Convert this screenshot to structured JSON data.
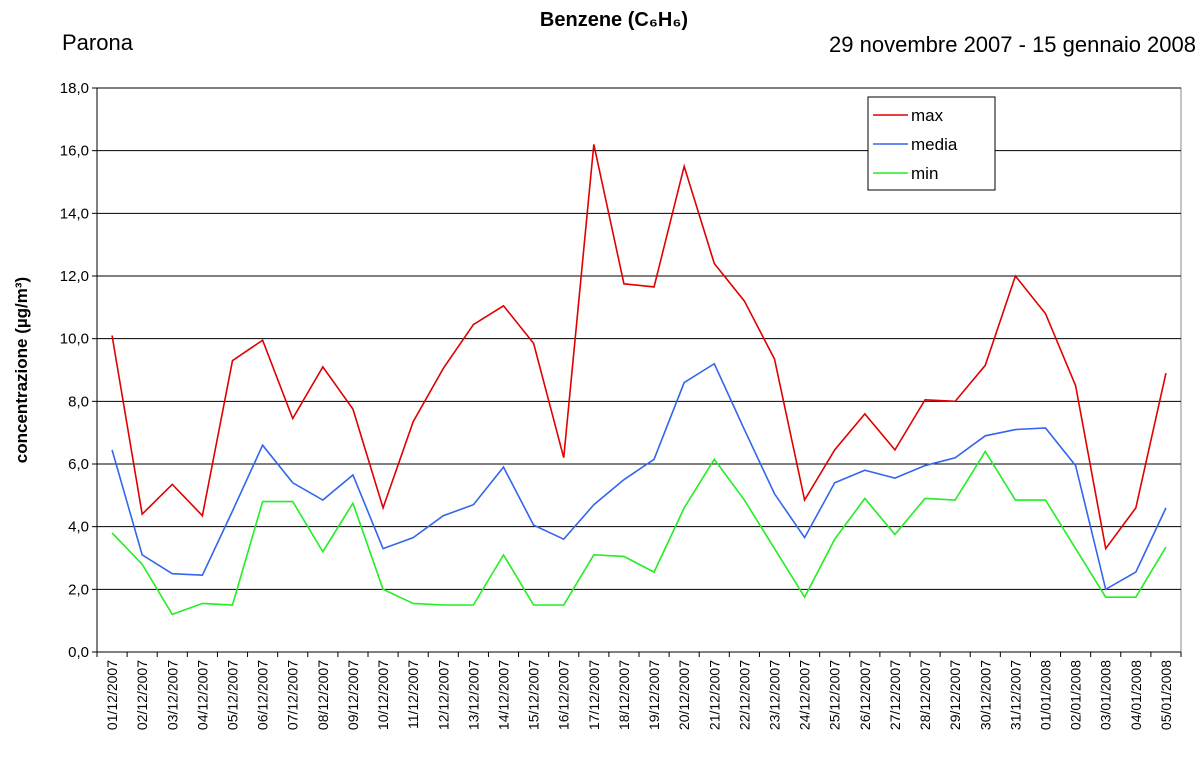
{
  "chart_data": {
    "type": "line",
    "title": "Benzene (C₆H₆)",
    "subtitle": "29 novembre 2007 - 15 gennaio 2008",
    "location": "Parona",
    "y_label": "concentrazione (µg/m³)",
    "categories": [
      "01/12/2007",
      "02/12/2007",
      "03/12/2007",
      "04/12/2007",
      "05/12/2007",
      "06/12/2007",
      "07/12/2007",
      "08/12/2007",
      "09/12/2007",
      "10/12/2007",
      "11/12/2007",
      "12/12/2007",
      "13/12/2007",
      "14/12/2007",
      "15/12/2007",
      "16/12/2007",
      "17/12/2007",
      "18/12/2007",
      "19/12/2007",
      "20/12/2007",
      "21/12/2007",
      "22/12/2007",
      "23/12/2007",
      "24/12/2007",
      "25/12/2007",
      "26/12/2007",
      "27/12/2007",
      "28/12/2007",
      "29/12/2007",
      "30/12/2007",
      "31/12/2007",
      "01/01/2008",
      "02/01/2008",
      "03/01/2008",
      "04/01/2008",
      "05/01/2008"
    ],
    "series": [
      {
        "name": "max",
        "color": "#e00000",
        "values": [
          10.1,
          4.4,
          5.35,
          4.35,
          9.3,
          9.95,
          7.45,
          9.1,
          7.75,
          4.6,
          7.35,
          9.05,
          10.45,
          11.05,
          9.85,
          6.2,
          16.2,
          11.75,
          11.65,
          15.5,
          12.4,
          11.2,
          9.35,
          4.85,
          6.45,
          7.6,
          6.45,
          8.05,
          8.0,
          9.15,
          12.0,
          10.8,
          8.5,
          3.3,
          4.6,
          8.9
        ]
      },
      {
        "name": "media",
        "color": "#3366ee",
        "values": [
          6.45,
          3.1,
          2.5,
          2.45,
          4.5,
          6.6,
          5.4,
          4.85,
          5.65,
          3.3,
          3.65,
          4.35,
          4.7,
          5.9,
          4.05,
          3.6,
          4.7,
          5.5,
          6.15,
          8.6,
          9.2,
          7.1,
          5.05,
          3.65,
          5.4,
          5.8,
          5.55,
          5.95,
          6.2,
          6.9,
          7.1,
          7.15,
          5.95,
          2.0,
          2.55,
          4.6
        ]
      },
      {
        "name": "min",
        "color": "#22ee22",
        "values": [
          3.8,
          2.8,
          1.2,
          1.55,
          1.5,
          4.8,
          4.8,
          3.2,
          4.75,
          2.0,
          1.55,
          1.5,
          1.5,
          3.1,
          1.5,
          1.5,
          3.1,
          3.05,
          2.55,
          4.6,
          6.15,
          4.85,
          3.3,
          1.75,
          3.6,
          4.9,
          3.75,
          4.9,
          4.85,
          6.4,
          4.85,
          4.85,
          3.3,
          1.75,
          1.75,
          3.35
        ]
      }
    ],
    "ylim": [
      0,
      18
    ],
    "yticks": [
      {
        "value": 0,
        "label": "0,0"
      },
      {
        "value": 2,
        "label": "2,0"
      },
      {
        "value": 4,
        "label": "4,0"
      },
      {
        "value": 6,
        "label": "6,0"
      },
      {
        "value": 8,
        "label": "8,0"
      },
      {
        "value": 10,
        "label": "10,0"
      },
      {
        "value": 12,
        "label": "12,0"
      },
      {
        "value": 14,
        "label": "14,0"
      },
      {
        "value": 16,
        "label": "16,0"
      },
      {
        "value": 18,
        "label": "18,0"
      }
    ],
    "grid": true,
    "legend": "upper right"
  }
}
